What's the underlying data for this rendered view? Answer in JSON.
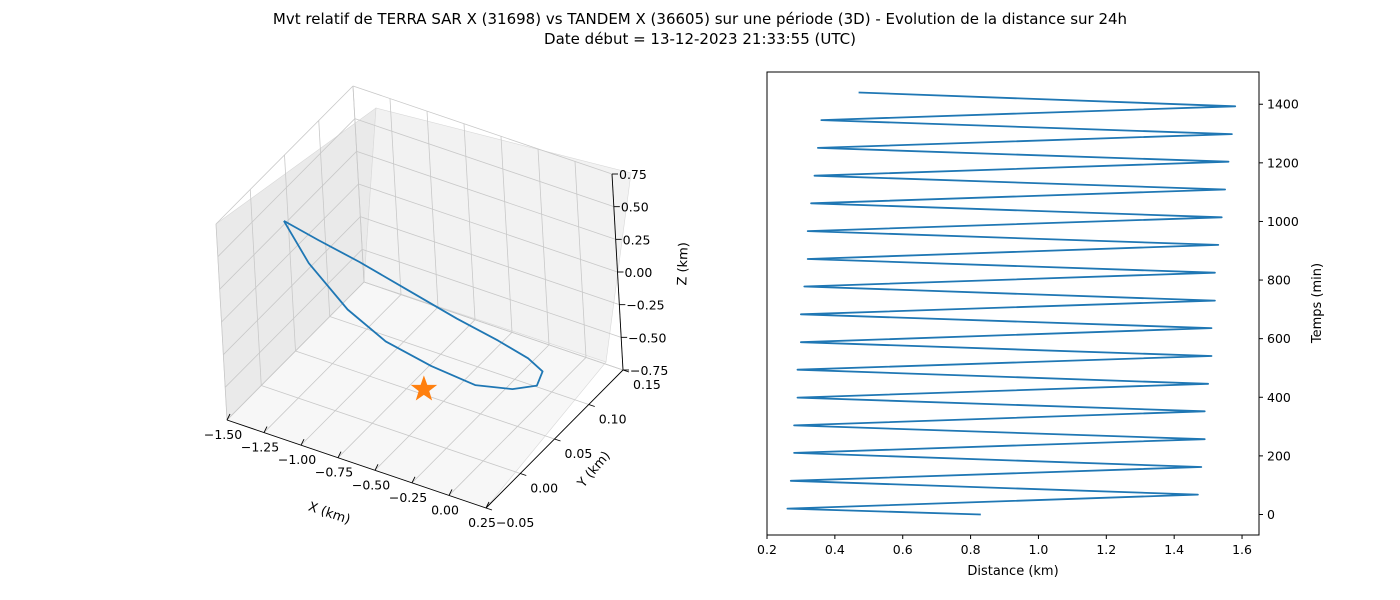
{
  "figure": {
    "title_line1": "Mvt relatif de TERRA SAR X (31698) vs TANDEM X (36605) sur une période (3D) - Evolution de la distance sur 24h",
    "title_line2": "Date début = 13-12-2023 21:33:55 (UTC)"
  },
  "colors": {
    "series": "#1f77b4",
    "marker": "#ff7f0e",
    "pane": "#f2f2f2",
    "grid": "#b0b0b0"
  },
  "chart_data": [
    {
      "type": "line3d",
      "title": "",
      "xlabel": "X (km)",
      "ylabel": "Y (km)",
      "zlabel": "Z (km)",
      "xlim": [
        -1.5,
        0.25
      ],
      "ylim": [
        -0.05,
        0.15
      ],
      "zlim": [
        -0.75,
        0.75
      ],
      "x_ticks": [
        "−1.50",
        "−1.25",
        "−1.00",
        "−0.75",
        "−0.50",
        "−0.25",
        "0.00",
        "0.25"
      ],
      "y_ticks": [
        "−0.05",
        "0.00",
        "0.05",
        "0.10",
        "0.15"
      ],
      "z_ticks": [
        "−0.75",
        "−0.50",
        "−0.25",
        "0.00",
        "0.25",
        "0.50",
        "0.75"
      ],
      "grid": true,
      "series": [
        {
          "marker": "line",
          "points": [
            [
              -1.38,
              0.02,
              0.45
            ],
            [
              -1.2,
              0.03,
              0.32
            ],
            [
              -1.0,
              0.045,
              0.15
            ],
            [
              -0.75,
              0.06,
              -0.05
            ],
            [
              -0.5,
              0.075,
              -0.25
            ],
            [
              -0.3,
              0.09,
              -0.42
            ],
            [
              -0.15,
              0.1,
              -0.55
            ],
            [
              -0.08,
              0.105,
              -0.65
            ],
            [
              -0.1,
              0.1,
              -0.74
            ],
            [
              -0.22,
              0.09,
              -0.76
            ],
            [
              -0.4,
              0.075,
              -0.72
            ],
            [
              -0.62,
              0.06,
              -0.58
            ],
            [
              -0.85,
              0.045,
              -0.4
            ],
            [
              -1.05,
              0.035,
              -0.18
            ],
            [
              -1.25,
              0.025,
              0.15
            ],
            [
              -1.38,
              0.02,
              0.45
            ]
          ]
        },
        {
          "marker": "star",
          "points": [
            [
              -0.68,
              0.06,
              -0.78
            ]
          ]
        }
      ]
    },
    {
      "type": "line",
      "title": "",
      "xlabel": "Distance (km)",
      "ylabel": "Temps (min)",
      "xlim": [
        0.2,
        1.65
      ],
      "ylim": [
        -70,
        1510
      ],
      "x_ticks": [
        "0.2",
        "0.4",
        "0.6",
        "0.8",
        "1.0",
        "1.2",
        "1.4",
        "1.6"
      ],
      "y_ticks": [
        "0",
        "200",
        "400",
        "600",
        "800",
        "1000",
        "1200",
        "1400"
      ],
      "grid": false,
      "series": [
        {
          "name": "",
          "x": [
            0.83,
            0.26,
            1.47,
            0.27,
            1.48,
            0.28,
            1.49,
            0.28,
            1.49,
            0.29,
            1.5,
            0.29,
            1.51,
            0.3,
            1.51,
            0.3,
            1.52,
            0.31,
            1.52,
            0.32,
            1.53,
            0.32,
            1.54,
            0.33,
            1.55,
            0.34,
            1.56,
            0.35,
            1.57,
            0.36,
            1.58,
            0.47
          ],
          "y": [
            0,
            20,
            68,
            115,
            162,
            210,
            257,
            304,
            352,
            399,
            446,
            494,
            541,
            588,
            636,
            683,
            730,
            778,
            825,
            872,
            920,
            967,
            1014,
            1062,
            1109,
            1156,
            1204,
            1251,
            1298,
            1346,
            1393,
            1440
          ]
        }
      ]
    }
  ]
}
